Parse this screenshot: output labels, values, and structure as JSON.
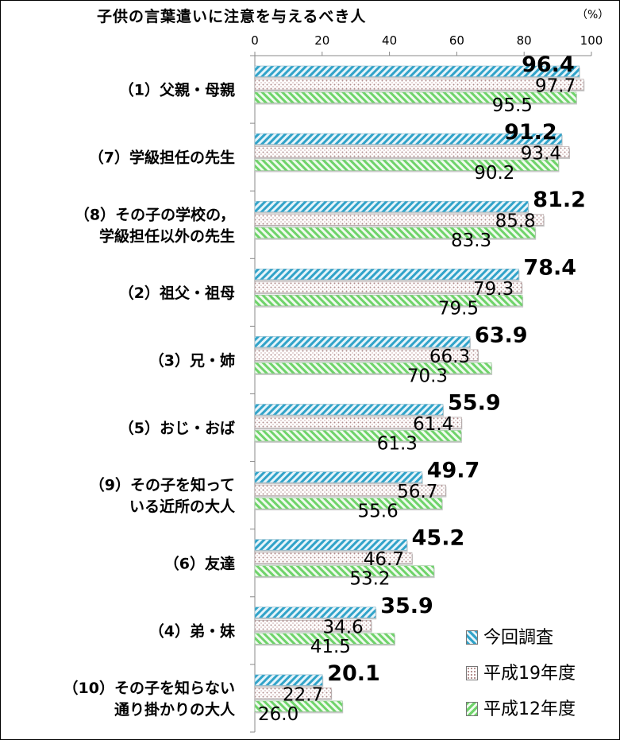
{
  "chart_data": {
    "type": "bar",
    "orientation": "horizontal",
    "title": "子供の言葉遣いに注意を与えるべき人",
    "unit": "（%）",
    "xlim": [
      0,
      100
    ],
    "x_ticks": [
      0,
      20,
      40,
      60,
      80,
      100
    ],
    "categories": [
      [
        "（1）父親・母親"
      ],
      [
        "（7）学級担任の先生"
      ],
      [
        "（8）その子の学校の，",
        "学級担任以外の先生"
      ],
      [
        "（2）祖父・祖母"
      ],
      [
        "（3）兄・姉"
      ],
      [
        "（5）おじ・おば"
      ],
      [
        "（9）その子を知って",
        "いる近所の大人"
      ],
      [
        "（6）友達"
      ],
      [
        "（4）弟・妹"
      ],
      [
        "（10）その子を知らない",
        "通り掛かりの大人"
      ]
    ],
    "series": [
      {
        "name": "今回調査",
        "values": [
          96.4,
          91.2,
          81.2,
          78.4,
          63.9,
          55.9,
          49.7,
          45.2,
          35.9,
          20.1
        ],
        "labels": [
          "96.4",
          "91.2",
          "81.2",
          "78.4",
          "63.9",
          "55.9",
          "49.7",
          "45.2",
          "35.9",
          "20.1"
        ],
        "color": "#4bacc6",
        "pattern": "blue-diagonal"
      },
      {
        "name": "平成19年度",
        "values": [
          97.7,
          93.4,
          85.8,
          79.3,
          66.3,
          61.4,
          56.7,
          46.7,
          34.6,
          22.7
        ],
        "labels": [
          "97.7",
          "93.4",
          "85.8",
          "79.3",
          "66.3",
          "61.4",
          "56.7",
          "46.7",
          "34.6",
          "22.7"
        ],
        "color": "#c0a0a0",
        "pattern": "dotted"
      },
      {
        "name": "平成12年度",
        "values": [
          95.5,
          90.2,
          83.3,
          79.5,
          70.3,
          61.3,
          55.6,
          53.2,
          41.5,
          26.0
        ],
        "labels": [
          "95.5",
          "90.2",
          "83.3",
          "79.5",
          "70.3",
          "61.3",
          "55.6",
          "53.2",
          "41.5",
          "26.0"
        ],
        "color": "#7fd37f",
        "pattern": "green-diagonal"
      }
    ],
    "legend_position": "bottom-right",
    "grid": false
  }
}
